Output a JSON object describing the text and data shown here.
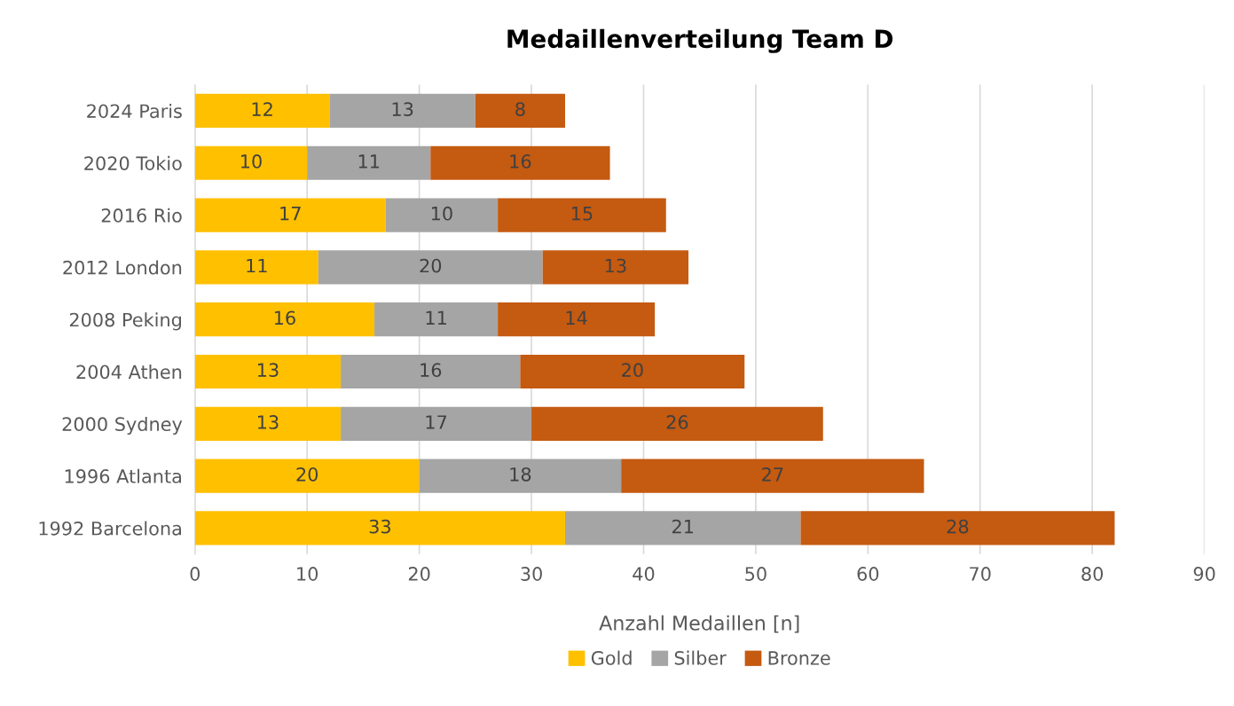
{
  "chart_data": {
    "type": "bar",
    "orientation": "horizontal",
    "stacked": true,
    "title": "Medaillenverteilung Team D",
    "xlabel": "Anzahl Medaillen [n]",
    "categories": [
      "2024 Paris",
      "2020 Tokio",
      "2016 Rio",
      "2012 London",
      "2008 Peking",
      "2004 Athen",
      "2000 Sydney",
      "1996 Atlanta",
      "1992 Barcelona"
    ],
    "series": [
      {
        "name": "Gold",
        "color": "#ffc000",
        "values": [
          12,
          10,
          17,
          11,
          16,
          13,
          13,
          20,
          33
        ]
      },
      {
        "name": "Silber",
        "color": "#a5a5a5",
        "values": [
          13,
          11,
          10,
          20,
          11,
          16,
          17,
          18,
          21
        ]
      },
      {
        "name": "Bronze",
        "color": "#c55a11",
        "values": [
          8,
          16,
          15,
          13,
          14,
          20,
          26,
          27,
          28
        ]
      }
    ],
    "xlim": [
      0,
      90
    ],
    "xticks": [
      0,
      10,
      20,
      30,
      40,
      50,
      60,
      70,
      80,
      90
    ],
    "grid": "x",
    "legend": "bottom",
    "data_labels": true
  }
}
